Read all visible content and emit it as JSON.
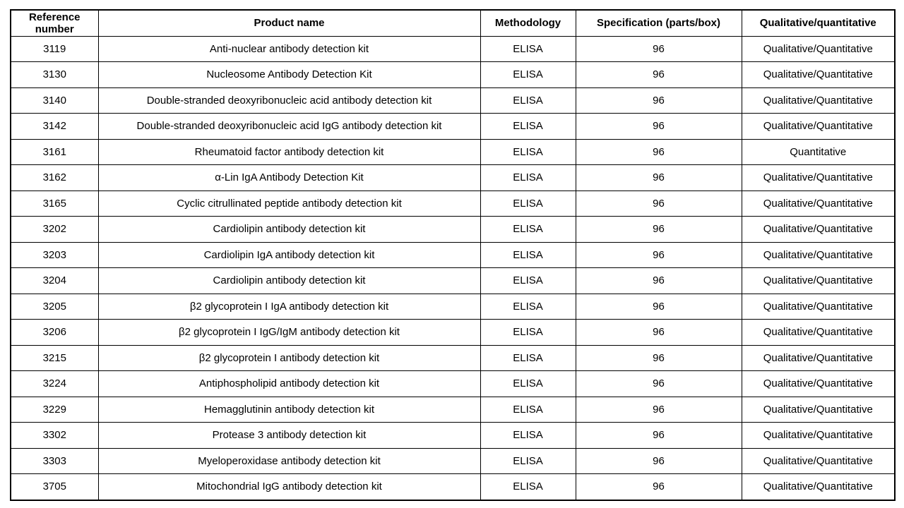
{
  "table": {
    "columns": [
      "Reference number",
      "Product name",
      "Methodology",
      "Specification (parts/box)",
      "Qualitative/quantitative"
    ],
    "column_keys": [
      "reference-number",
      "product-name",
      "methodology",
      "specification",
      "qualitative-quantitative"
    ],
    "rows": [
      [
        "3119",
        "Anti-nuclear antibody detection kit",
        "ELISA",
        "96",
        "Qualitative/Quantitative"
      ],
      [
        "3130",
        "Nucleosome Antibody Detection Kit",
        "ELISA",
        "96",
        "Qualitative/Quantitative"
      ],
      [
        "3140",
        "Double-stranded deoxyribonucleic acid antibody detection kit",
        "ELISA",
        "96",
        "Qualitative/Quantitative"
      ],
      [
        "3142",
        "Double-stranded deoxyribonucleic acid IgG antibody detection kit",
        "ELISA",
        "96",
        "Qualitative/Quantitative"
      ],
      [
        "3161",
        "Rheumatoid factor antibody detection kit",
        "ELISA",
        "96",
        "Quantitative"
      ],
      [
        "3162",
        "α-Lin IgA Antibody Detection Kit",
        "ELISA",
        "96",
        "Qualitative/Quantitative"
      ],
      [
        "3165",
        "Cyclic citrullinated peptide antibody detection kit",
        "ELISA",
        "96",
        "Qualitative/Quantitative"
      ],
      [
        "3202",
        "Cardiolipin antibody detection kit",
        "ELISA",
        "96",
        "Qualitative/Quantitative"
      ],
      [
        "3203",
        "Cardiolipin IgA antibody detection kit",
        "ELISA",
        "96",
        "Qualitative/Quantitative"
      ],
      [
        "3204",
        "Cardiolipin antibody detection kit",
        "ELISA",
        "96",
        "Qualitative/Quantitative"
      ],
      [
        "3205",
        "β2 glycoprotein I IgA antibody detection kit",
        "ELISA",
        "96",
        "Qualitative/Quantitative"
      ],
      [
        "3206",
        "β2 glycoprotein I IgG/IgM antibody detection kit",
        "ELISA",
        "96",
        "Qualitative/Quantitative"
      ],
      [
        "3215",
        "β2 glycoprotein I antibody detection kit",
        "ELISA",
        "96",
        "Qualitative/Quantitative"
      ],
      [
        "3224",
        "Antiphospholipid antibody detection kit",
        "ELISA",
        "96",
        "Qualitative/Quantitative"
      ],
      [
        "3229",
        "Hemagglutinin antibody detection kit",
        "ELISA",
        "96",
        "Qualitative/Quantitative"
      ],
      [
        "3302",
        "Protease 3 antibody detection kit",
        "ELISA",
        "96",
        "Qualitative/Quantitative"
      ],
      [
        "3303",
        "Myeloperoxidase antibody detection kit",
        "ELISA",
        "96",
        "Qualitative/Quantitative"
      ],
      [
        "3705",
        "Mitochondrial IgG antibody detection kit",
        "ELISA",
        "96",
        "Qualitative/Quantitative"
      ]
    ]
  }
}
